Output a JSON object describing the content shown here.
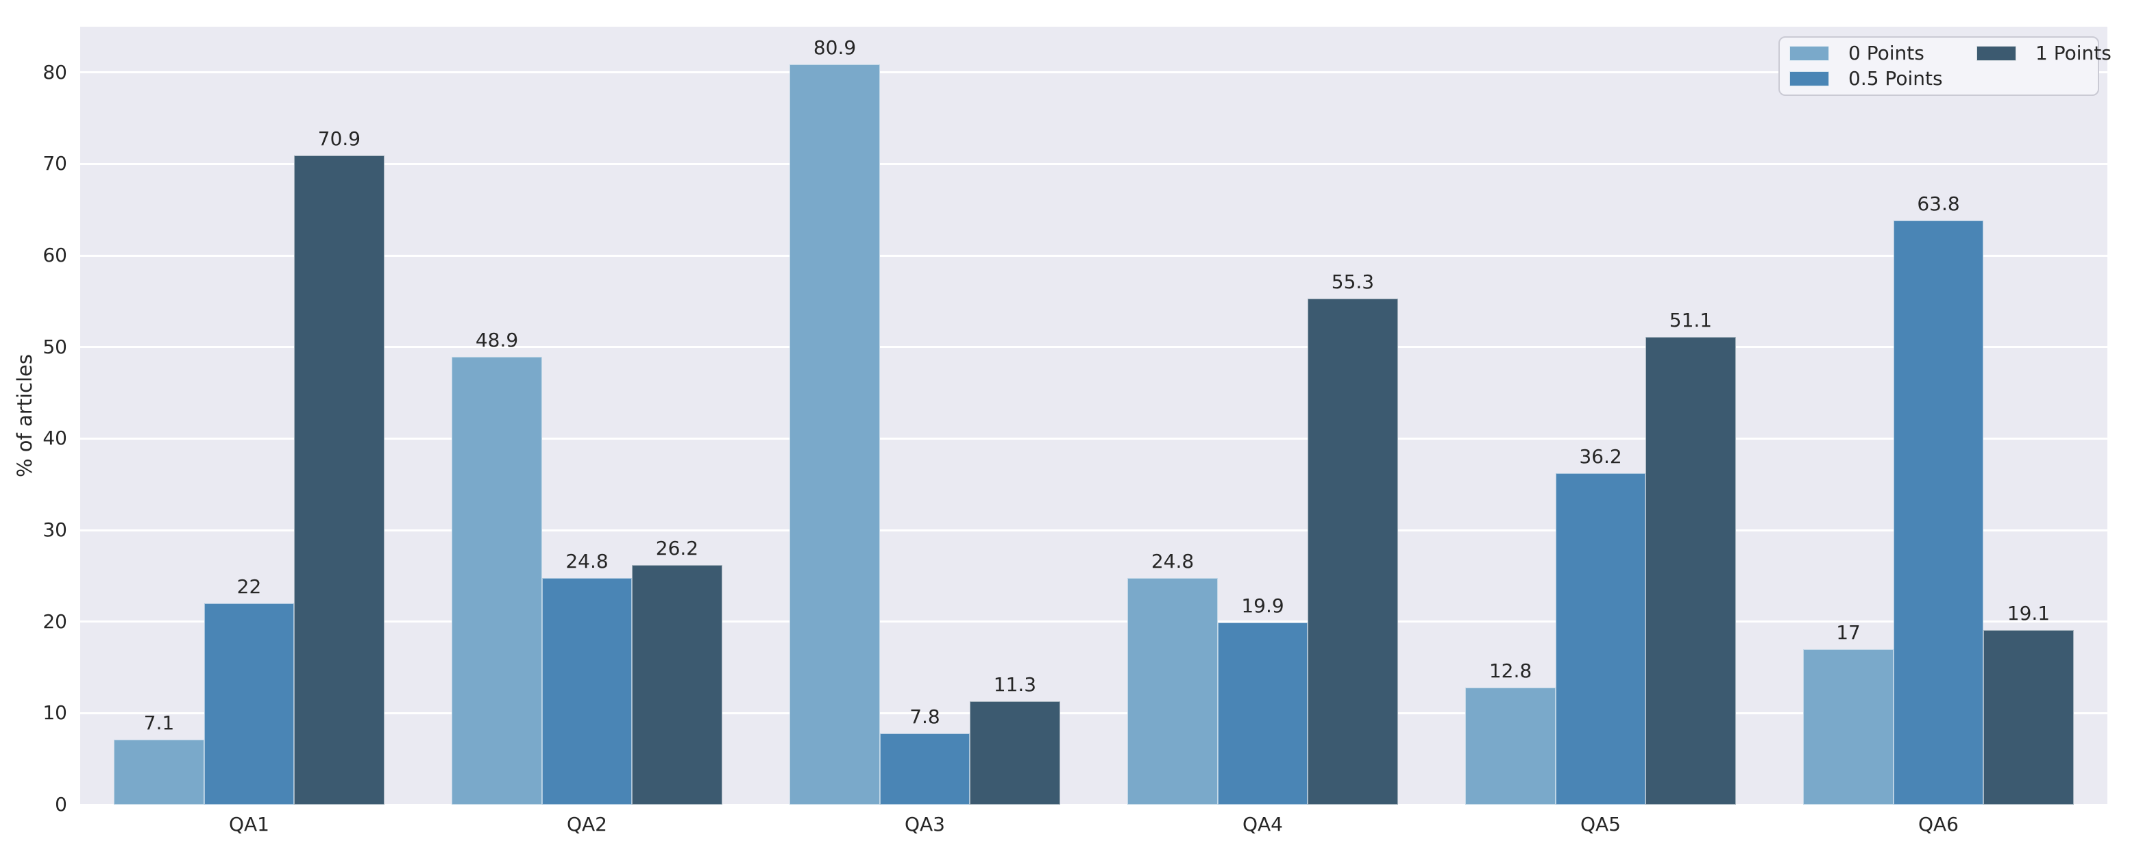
{
  "figure": {
    "background": "#ffffff",
    "plot_background": "#eaeaf2",
    "grid_color": "#ffffff",
    "tick_color": "#262626",
    "bar_label_color": "#262626"
  },
  "chart_data": {
    "type": "bar",
    "title": "",
    "xlabel": "",
    "ylabel": "% of articles",
    "categories": [
      "QA1",
      "QA2",
      "QA3",
      "QA4",
      "QA5",
      "QA6"
    ],
    "series": [
      {
        "name": "0 Points",
        "color": "#7aa9ca",
        "values": [
          7.1,
          48.9,
          80.9,
          24.8,
          12.8,
          17
        ],
        "labels": [
          "7.1",
          "48.9",
          "80.9",
          "24.8",
          "12.8",
          "17"
        ]
      },
      {
        "name": "0.5 Points",
        "color": "#4a85b5",
        "values": [
          22,
          24.8,
          7.8,
          19.9,
          36.2,
          63.8
        ],
        "labels": [
          "22",
          "24.8",
          "7.8",
          "19.9",
          "36.2",
          "63.8"
        ]
      },
      {
        "name": "1 Points",
        "color": "#3c5a70",
        "values": [
          70.9,
          26.2,
          11.3,
          55.3,
          51.1,
          19.1
        ],
        "labels": [
          "70.9",
          "26.2",
          "11.3",
          "55.3",
          "51.1",
          "19.1"
        ]
      }
    ],
    "ylim": [
      0,
      85
    ],
    "yticks": [
      0,
      10,
      20,
      30,
      40,
      50,
      60,
      70,
      80
    ],
    "grid": true,
    "bar_group_width_fraction": 0.8,
    "legend": {
      "position": "upper-right",
      "columns": 2,
      "entries": [
        "0 Points",
        "0.5 Points",
        "1 Points"
      ]
    }
  }
}
